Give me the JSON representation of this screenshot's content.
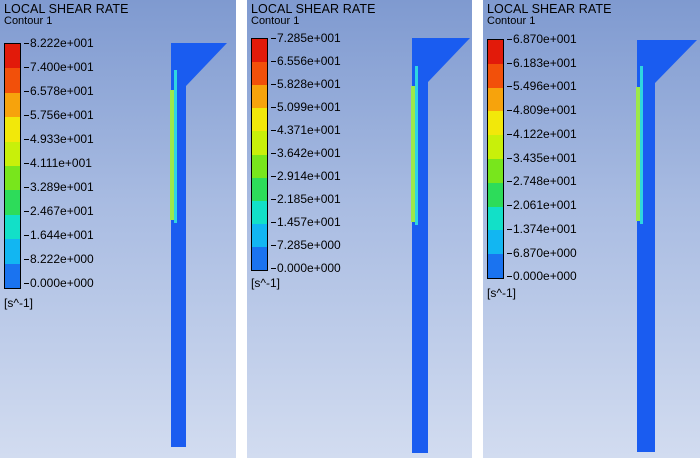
{
  "colormap": [
    "#1f3fd8",
    "#1a73f0",
    "#12b6f2",
    "#12e0c8",
    "#2ddc5a",
    "#78e61c",
    "#c8f00a",
    "#f2e80a",
    "#f7a30c",
    "#f2500a",
    "#e21a0a"
  ],
  "geometry_color": "#1a5cf0",
  "panels": [
    {
      "title": "LOCAL SHEAR RATE",
      "subtitle": "Contour 1",
      "labels": [
        "8.222e+001",
        "7.400e+001",
        "6.578e+001",
        "5.756e+001",
        "4.933e+001",
        "4.111e+001",
        "3.289e+001",
        "2.467e+001",
        "1.644e+001",
        "8.222e+000",
        "0.000e+000"
      ],
      "unit": "[s^-1]"
    },
    {
      "title": "LOCAL SHEAR RATE",
      "subtitle": "Contour 1",
      "labels": [
        "7.285e+001",
        "6.556e+001",
        "5.828e+001",
        "5.099e+001",
        "4.371e+001",
        "3.642e+001",
        "2.914e+001",
        "2.185e+001",
        "1.457e+001",
        "7.285e+000",
        "0.000e+000"
      ],
      "unit": "[s^-1]"
    },
    {
      "title": "LOCAL SHEAR RATE",
      "subtitle": "Contour 1",
      "labels": [
        "6.870e+001",
        "6.183e+001",
        "5.496e+001",
        "4.809e+001",
        "4.122e+001",
        "3.435e+001",
        "2.748e+001",
        "2.061e+001",
        "1.374e+001",
        "6.870e+000",
        "0.000e+000"
      ],
      "unit": "[s^-1]"
    }
  ]
}
